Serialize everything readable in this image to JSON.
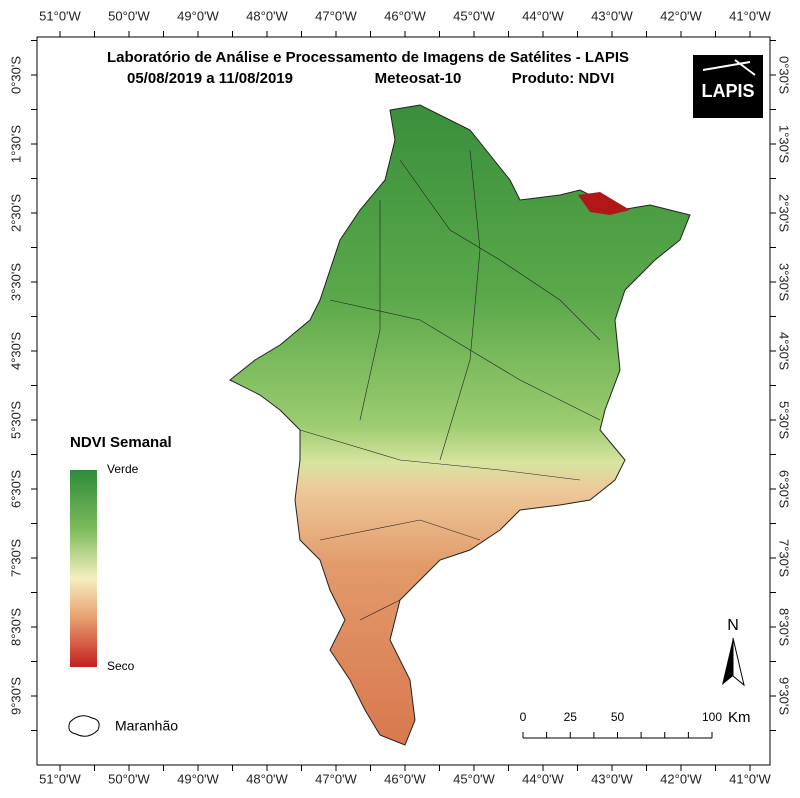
{
  "title": {
    "line1": "Laboratório de Análise e Processamento de Imagens de Satélites - LAPIS",
    "dates": "05/08/2019  a  11/08/2019",
    "satellite": "Meteosat-10",
    "product": "Produto: NDVI"
  },
  "logo": "LAPIS",
  "longitude_labels": [
    "51°0'W",
    "50°0'W",
    "49°0'W",
    "48°0'W",
    "47°0'W",
    "46°0'W",
    "45°0'W",
    "44°0'W",
    "43°0'W",
    "42°0'W",
    "41°0'W"
  ],
  "latitude_labels": [
    "0°30'S",
    "1°30'S",
    "2°30'S",
    "3°30'S",
    "4°30'S",
    "5°30'S",
    "6°30'S",
    "7°30'S",
    "8°30'S",
    "9°30'S"
  ],
  "legend": {
    "title": "NDVI Semanal",
    "high": "Verde",
    "low": "Seco",
    "boundary": "Maranhão"
  },
  "north": "N",
  "scale": {
    "ticks": [
      0,
      25,
      50,
      100
    ],
    "unit": "Km"
  }
}
